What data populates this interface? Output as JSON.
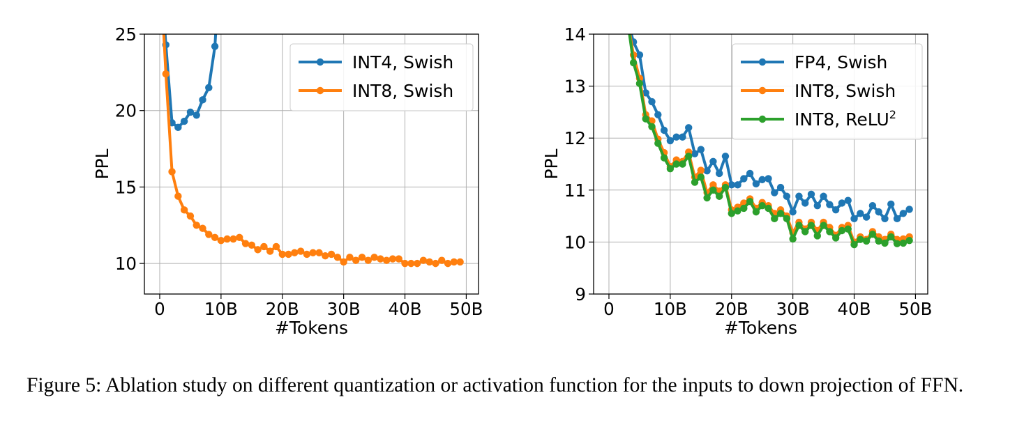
{
  "chart_data": [
    {
      "type": "line",
      "xlabel": "#Tokens",
      "ylabel": "PPL",
      "xlim": [
        -2.5,
        52
      ],
      "ylim": [
        8,
        25
      ],
      "xticks": [
        0,
        10,
        20,
        30,
        40,
        50
      ],
      "xtick_labels": [
        "0",
        "10B",
        "20B",
        "30B",
        "40B",
        "50B"
      ],
      "yticks": [
        10,
        15,
        20,
        25
      ],
      "ytick_labels": [
        "10",
        "15",
        "20",
        "25"
      ],
      "grid": true,
      "legend": "top-right",
      "series": [
        {
          "name": "INT4, Swish",
          "color": "#1f77b4",
          "x": [
            0,
            1,
            2,
            3,
            4,
            5,
            6,
            7,
            8,
            9,
            10
          ],
          "y": [
            30,
            24.3,
            19.2,
            18.9,
            19.3,
            19.9,
            19.7,
            20.7,
            21.5,
            24.2,
            31
          ]
        },
        {
          "name": "INT8, Swish",
          "color": "#ff7f0e",
          "x": [
            0,
            1,
            2,
            3,
            4,
            5,
            6,
            7,
            8,
            9,
            10,
            11,
            12,
            13,
            14,
            15,
            16,
            17,
            18,
            19,
            20,
            21,
            22,
            23,
            24,
            25,
            26,
            27,
            28,
            29,
            30,
            31,
            32,
            33,
            34,
            35,
            36,
            37,
            38,
            39,
            40,
            41,
            42,
            43,
            44,
            45,
            46,
            47,
            48,
            49
          ],
          "y": [
            30,
            22.4,
            16.0,
            14.4,
            13.5,
            13.1,
            12.5,
            12.3,
            11.9,
            11.7,
            11.5,
            11.6,
            11.6,
            11.7,
            11.3,
            11.2,
            10.9,
            11.1,
            10.8,
            11.1,
            10.6,
            10.6,
            10.7,
            10.8,
            10.6,
            10.7,
            10.7,
            10.5,
            10.6,
            10.4,
            10.1,
            10.4,
            10.2,
            10.4,
            10.2,
            10.4,
            10.3,
            10.2,
            10.3,
            10.3,
            10.0,
            10.0,
            10.0,
            10.2,
            10.1,
            10.0,
            10.2,
            10.0,
            10.1,
            10.1
          ]
        }
      ]
    },
    {
      "type": "line",
      "xlabel": "#Tokens",
      "ylabel": "PPL",
      "xlim": [
        -2.5,
        52
      ],
      "ylim": [
        9,
        14
      ],
      "xticks": [
        0,
        10,
        20,
        30,
        40,
        50
      ],
      "xtick_labels": [
        "0",
        "10B",
        "20B",
        "30B",
        "40B",
        "50B"
      ],
      "yticks": [
        9,
        10,
        11,
        12,
        13,
        14
      ],
      "ytick_labels": [
        "9",
        "10",
        "11",
        "12",
        "13",
        "14"
      ],
      "grid": true,
      "legend": "top-right",
      "series": [
        {
          "name": "FP4, Swish",
          "color": "#1f77b4",
          "x": [
            3,
            4,
            5,
            6,
            7,
            8,
            9,
            10,
            11,
            12,
            13,
            14,
            15,
            16,
            17,
            18,
            19,
            20,
            21,
            22,
            23,
            24,
            25,
            26,
            27,
            28,
            29,
            30,
            31,
            32,
            33,
            34,
            35,
            36,
            37,
            38,
            39,
            40,
            41,
            42,
            43,
            44,
            45,
            46,
            47,
            48,
            49
          ],
          "y": [
            14.3,
            13.85,
            13.6,
            12.87,
            12.7,
            12.45,
            12.15,
            11.95,
            12.02,
            12.02,
            12.2,
            11.7,
            11.78,
            11.37,
            11.55,
            11.32,
            11.65,
            11.1,
            11.1,
            11.22,
            11.32,
            11.12,
            11.2,
            11.22,
            10.95,
            11.05,
            10.88,
            10.58,
            10.88,
            10.75,
            10.92,
            10.7,
            10.88,
            10.72,
            10.62,
            10.75,
            10.8,
            10.45,
            10.55,
            10.48,
            10.7,
            10.58,
            10.45,
            10.73,
            10.45,
            10.55,
            10.63
          ]
        },
        {
          "name": "INT8, Swish",
          "color": "#ff7f0e",
          "x": [
            3,
            4,
            5,
            6,
            7,
            8,
            9,
            10,
            11,
            12,
            13,
            14,
            15,
            16,
            17,
            18,
            19,
            20,
            21,
            22,
            23,
            24,
            25,
            26,
            27,
            28,
            29,
            30,
            31,
            32,
            33,
            34,
            35,
            36,
            37,
            38,
            39,
            40,
            41,
            42,
            43,
            44,
            45,
            46,
            47,
            48,
            49
          ],
          "y": [
            14.3,
            13.6,
            13.15,
            12.45,
            12.33,
            11.98,
            11.72,
            11.45,
            11.58,
            11.55,
            11.73,
            11.25,
            11.38,
            10.95,
            11.1,
            10.98,
            11.1,
            10.62,
            10.67,
            10.75,
            10.83,
            10.65,
            10.76,
            10.7,
            10.55,
            10.62,
            10.5,
            10.18,
            10.38,
            10.25,
            10.38,
            10.22,
            10.38,
            10.28,
            10.13,
            10.28,
            10.32,
            10.0,
            10.1,
            10.05,
            10.2,
            10.1,
            10.05,
            10.15,
            10.05,
            10.06,
            10.1
          ]
        },
        {
          "name": "INT8, ReLU",
          "name_superscript": "2",
          "color": "#2ca02c",
          "x": [
            3,
            4,
            5,
            6,
            7,
            8,
            9,
            10,
            11,
            12,
            13,
            14,
            15,
            16,
            17,
            18,
            19,
            20,
            21,
            22,
            23,
            24,
            25,
            26,
            27,
            28,
            29,
            30,
            31,
            32,
            33,
            34,
            35,
            36,
            37,
            38,
            39,
            40,
            41,
            42,
            43,
            44,
            45,
            46,
            47,
            48,
            49
          ],
          "y": [
            14.3,
            13.45,
            13.05,
            12.37,
            12.22,
            11.9,
            11.62,
            11.41,
            11.5,
            11.5,
            11.65,
            11.15,
            11.25,
            10.85,
            11.0,
            10.88,
            11.05,
            10.55,
            10.6,
            10.65,
            10.78,
            10.58,
            10.7,
            10.65,
            10.45,
            10.55,
            10.45,
            10.06,
            10.32,
            10.2,
            10.32,
            10.12,
            10.32,
            10.2,
            10.08,
            10.22,
            10.25,
            9.95,
            10.05,
            10.02,
            10.15,
            10.02,
            9.98,
            10.1,
            9.97,
            9.98,
            10.03
          ]
        }
      ]
    }
  ],
  "caption": "Figure 5:  Ablation study on different quantization or activation function for the inputs to down projection of FFN."
}
